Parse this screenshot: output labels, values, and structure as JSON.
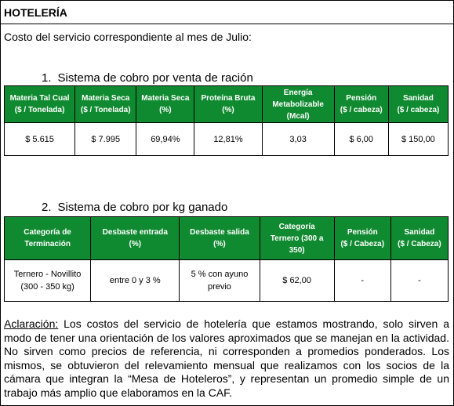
{
  "header": {
    "title": "HOTELERÍA"
  },
  "intro": "Costo del servicio correspondiente al mes de Julio:",
  "sections": [
    {
      "number": "1.",
      "title": "Sistema de cobro por venta de ración",
      "table": {
        "columns": [
          [
            "Materia Tal Cual",
            "($ / Tonelada)"
          ],
          [
            "Materia Seca",
            "($ / Tonelada)"
          ],
          [
            "Materia Seca",
            "(%)"
          ],
          [
            "Proteína Bruta",
            "(%)"
          ],
          [
            "Energía",
            "Metabolizable",
            "(Mcal)"
          ],
          [
            "Pensión",
            "($ / cabeza)"
          ],
          [
            "Sanidad",
            "($ / cabeza)"
          ]
        ],
        "rows": [
          [
            [
              "$ 5.615"
            ],
            [
              "$ 7.995"
            ],
            [
              "69,94%"
            ],
            [
              "12,81%"
            ],
            [
              "3,03"
            ],
            [
              "$ 6,00"
            ],
            [
              "$ 150,00"
            ]
          ]
        ]
      }
    },
    {
      "number": "2.",
      "title": "Sistema de cobro por kg ganado",
      "table": {
        "columns": [
          [
            "Categoría de",
            "Terminación"
          ],
          [
            "Desbaste entrada",
            "(%)"
          ],
          [
            "Desbaste salida",
            "(%)"
          ],
          [
            "Categoría",
            "Ternero (300 a",
            "350)"
          ],
          [
            "Pensión",
            "($ / Cabeza)"
          ],
          [
            "Sanidad",
            "($ / Cabeza)"
          ]
        ],
        "rows": [
          [
            [
              "Ternero - Novillito",
              "(300 - 350 kg)"
            ],
            [
              "entre 0 y 3 %"
            ],
            [
              "5 % con ayuno",
              "previo"
            ],
            [
              "$ 62,00"
            ],
            [
              "-"
            ],
            [
              "-"
            ]
          ]
        ]
      }
    }
  ],
  "note": {
    "label": "Aclaración:",
    "text": " Los costos del servicio de hotelería que estamos mostrando, solo sirven a modo de tener una orientación de los valores aproximados que se manejan en la actividad. No sirven como precios de referencia, ni corresponden a promedios ponderados. Los mismos, se obtuvieron del relevamiento mensual que realizamos con los socios de la cámara que integran la “Mesa de Hoteleros”, y representan un promedio simple de un trabajo más amplio que elaboramos en la CAF."
  }
}
